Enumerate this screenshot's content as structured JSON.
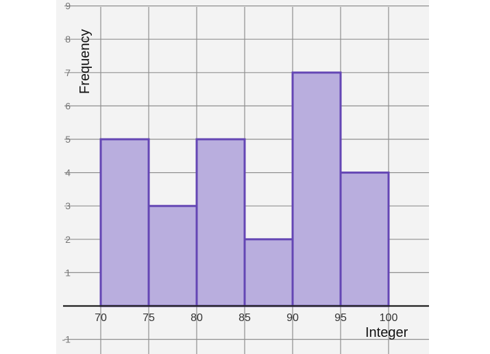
{
  "chart_data": {
    "type": "bar",
    "title": "",
    "xlabel": "Integer",
    "ylabel": "Frequency",
    "bins": [
      [
        70,
        75
      ],
      [
        75,
        80
      ],
      [
        80,
        85
      ],
      [
        85,
        90
      ],
      [
        90,
        95
      ],
      [
        95,
        100
      ]
    ],
    "values": [
      5,
      3,
      5,
      2,
      7,
      4
    ],
    "x_ticks": [
      "70",
      "75",
      "80",
      "85",
      "90",
      "95",
      "100"
    ],
    "y_ticks": [
      "9",
      "8",
      "7",
      "6",
      "5",
      "4",
      "3",
      "2",
      "1",
      "-1"
    ],
    "xlim": [
      65,
      105
    ],
    "ylim": [
      -1.5,
      9
    ],
    "grid": true,
    "colors": {
      "fill": "#b9aede",
      "edge": "#6446b4",
      "grid": "#8f8f8f",
      "background": "#f3f3f3"
    }
  }
}
